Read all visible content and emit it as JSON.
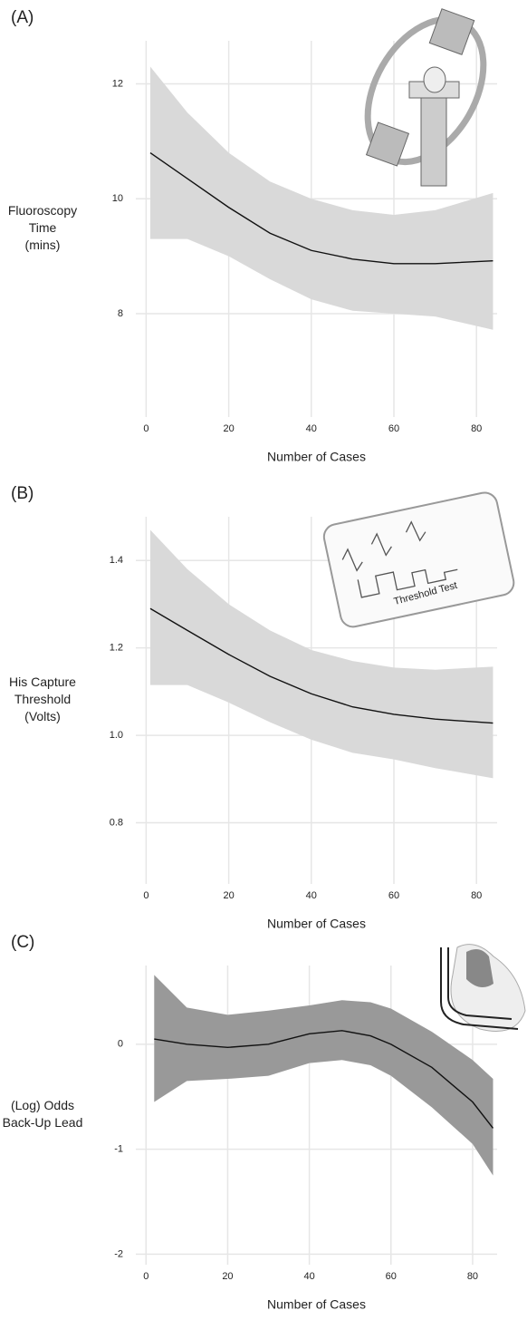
{
  "chart_data": [
    {
      "type": "line",
      "panel_label": "(A)",
      "ylabel": [
        "Fluoroscopy",
        "Time",
        "(mins)"
      ],
      "xlabel": "Number of Cases",
      "x": [
        1,
        10,
        20,
        30,
        40,
        50,
        60,
        70,
        84
      ],
      "values": [
        10.8,
        10.35,
        9.85,
        9.4,
        9.1,
        8.95,
        8.87,
        8.87,
        8.92
      ],
      "upper": [
        12.3,
        11.5,
        10.8,
        10.3,
        10.0,
        9.8,
        9.72,
        9.8,
        10.1
      ],
      "lower": [
        9.3,
        9.3,
        9.0,
        8.6,
        8.25,
        8.05,
        8.0,
        7.95,
        7.72
      ],
      "color": "#111111",
      "band_color": "#d9d9d9",
      "grid": true,
      "xlim": [
        -2.5,
        85
      ],
      "xticks": [
        0,
        20,
        40,
        60,
        80
      ],
      "ylim": [
        6.2,
        12.75
      ],
      "yticks": [
        8,
        10,
        12
      ]
    },
    {
      "type": "line",
      "panel_label": "(B)",
      "ylabel": [
        "His Capture",
        "Threshold",
        "(Volts)"
      ],
      "xlabel": "Number of Cases",
      "illustration_text": "Threshold Test",
      "x": [
        1,
        10,
        20,
        30,
        40,
        50,
        60,
        70,
        84
      ],
      "values": [
        1.29,
        1.24,
        1.185,
        1.135,
        1.095,
        1.065,
        1.048,
        1.037,
        1.028
      ],
      "upper": [
        1.47,
        1.38,
        1.3,
        1.24,
        1.195,
        1.17,
        1.155,
        1.15,
        1.157
      ],
      "lower": [
        1.115,
        1.115,
        1.075,
        1.03,
        0.99,
        0.96,
        0.945,
        0.925,
        0.902
      ],
      "color": "#111111",
      "band_color": "#d9d9d9",
      "grid": true,
      "xlim": [
        -2.5,
        85
      ],
      "xticks": [
        0,
        20,
        40,
        60,
        80
      ],
      "ylim": [
        0.66,
        1.5
      ],
      "yticks": [
        0.8,
        {
          "value": 1,
          "label": "1.0"
        },
        1.2,
        1.4
      ]
    },
    {
      "type": "line",
      "panel_label": "(C)",
      "ylabel": [
        "(Log) Odds",
        "Back-Up Lead"
      ],
      "xlabel": "Number of Cases",
      "x": [
        2,
        10,
        20,
        30,
        40,
        48,
        55,
        60,
        70,
        80,
        85
      ],
      "values": [
        0.05,
        0.0,
        -0.03,
        0.0,
        0.1,
        0.13,
        0.08,
        0.0,
        -0.22,
        -0.55,
        -0.8
      ],
      "upper": [
        0.66,
        0.35,
        0.28,
        0.32,
        0.37,
        0.42,
        0.4,
        0.34,
        0.12,
        -0.15,
        -0.33
      ],
      "lower": [
        -0.55,
        -0.35,
        -0.33,
        -0.3,
        -0.18,
        -0.15,
        -0.2,
        -0.3,
        -0.6,
        -0.95,
        -1.25
      ],
      "color": "#111111",
      "band_color": "#999999",
      "grid": true,
      "xlim": [
        -2.5,
        86
      ],
      "xticks": [
        0,
        20,
        40,
        60,
        80
      ],
      "ylim": [
        -2.1,
        0.75
      ],
      "yticks": [
        -2,
        -1,
        0
      ]
    }
  ]
}
